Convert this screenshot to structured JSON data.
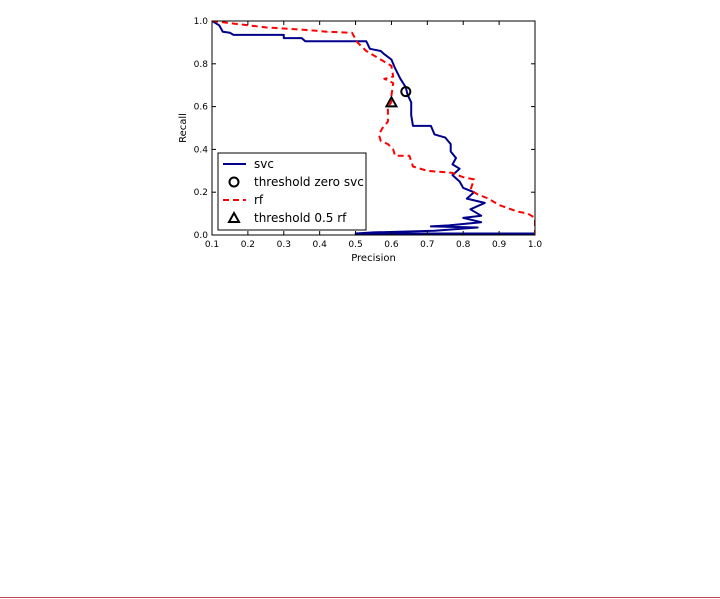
{
  "chart_data": {
    "type": "line",
    "title": "",
    "xlabel": "Precision",
    "ylabel": "Recall",
    "xlim": [
      0.1,
      1.0
    ],
    "ylim": [
      0.0,
      1.0
    ],
    "xticks": [
      "0.1",
      "0.2",
      "0.3",
      "0.4",
      "0.5",
      "0.6",
      "0.7",
      "0.8",
      "0.9",
      "1.0"
    ],
    "yticks": [
      "0.0",
      "0.2",
      "0.4",
      "0.6",
      "0.8",
      "1.0"
    ],
    "grid": false,
    "legend_position": "lower-left",
    "series": [
      {
        "name": "svc",
        "style": "solid",
        "color": "#00008b",
        "points": [
          [
            0.1,
            1.0
          ],
          [
            0.12,
            0.98
          ],
          [
            0.13,
            0.95
          ],
          [
            0.15,
            0.945
          ],
          [
            0.16,
            0.935
          ],
          [
            0.3,
            0.935
          ],
          [
            0.3,
            0.92
          ],
          [
            0.35,
            0.92
          ],
          [
            0.36,
            0.905
          ],
          [
            0.53,
            0.905
          ],
          [
            0.54,
            0.87
          ],
          [
            0.57,
            0.86
          ],
          [
            0.58,
            0.845
          ],
          [
            0.6,
            0.82
          ],
          [
            0.61,
            0.78
          ],
          [
            0.625,
            0.73
          ],
          [
            0.64,
            0.69
          ],
          [
            0.645,
            0.655
          ],
          [
            0.655,
            0.62
          ],
          [
            0.655,
            0.56
          ],
          [
            0.66,
            0.51
          ],
          [
            0.71,
            0.51
          ],
          [
            0.72,
            0.47
          ],
          [
            0.75,
            0.455
          ],
          [
            0.765,
            0.425
          ],
          [
            0.765,
            0.39
          ],
          [
            0.78,
            0.36
          ],
          [
            0.77,
            0.33
          ],
          [
            0.79,
            0.31
          ],
          [
            0.77,
            0.28
          ],
          [
            0.79,
            0.25
          ],
          [
            0.8,
            0.22
          ],
          [
            0.83,
            0.2
          ],
          [
            0.81,
            0.17
          ],
          [
            0.86,
            0.15
          ],
          [
            0.82,
            0.12
          ],
          [
            0.85,
            0.09
          ],
          [
            0.8,
            0.08
          ],
          [
            0.85,
            0.06
          ],
          [
            0.76,
            0.045
          ],
          [
            0.71,
            0.04
          ],
          [
            0.84,
            0.035
          ],
          [
            0.72,
            0.02
          ],
          [
            0.55,
            0.012
          ],
          [
            0.5,
            0.007
          ],
          [
            1.0,
            0.007
          ]
        ]
      },
      {
        "name": "rf",
        "style": "dashed",
        "color": "#ff0000",
        "points": [
          [
            0.1,
            1.0
          ],
          [
            0.25,
            0.97
          ],
          [
            0.35,
            0.96
          ],
          [
            0.42,
            0.95
          ],
          [
            0.49,
            0.945
          ],
          [
            0.505,
            0.9
          ],
          [
            0.53,
            0.86
          ],
          [
            0.56,
            0.83
          ],
          [
            0.6,
            0.79
          ],
          [
            0.605,
            0.74
          ],
          [
            0.58,
            0.73
          ],
          [
            0.605,
            0.71
          ],
          [
            0.6,
            0.65
          ],
          [
            0.6,
            0.62
          ],
          [
            0.59,
            0.6
          ],
          [
            0.59,
            0.53
          ],
          [
            0.575,
            0.5
          ],
          [
            0.565,
            0.47
          ],
          [
            0.57,
            0.44
          ],
          [
            0.59,
            0.425
          ],
          [
            0.605,
            0.4
          ],
          [
            0.61,
            0.37
          ],
          [
            0.65,
            0.37
          ],
          [
            0.66,
            0.32
          ],
          [
            0.7,
            0.3
          ],
          [
            0.77,
            0.29
          ],
          [
            0.8,
            0.27
          ],
          [
            0.83,
            0.26
          ],
          [
            0.82,
            0.21
          ],
          [
            0.84,
            0.19
          ],
          [
            0.87,
            0.17
          ],
          [
            0.9,
            0.14
          ],
          [
            0.95,
            0.11
          ],
          [
            0.98,
            0.1
          ],
          [
            1.0,
            0.08
          ],
          [
            1.0,
            0.0
          ]
        ]
      }
    ],
    "markers": [
      {
        "name": "threshold zero svc",
        "shape": "circle",
        "x": 0.64,
        "y": 0.67
      },
      {
        "name": "threshold 0.5 rf",
        "shape": "triangle",
        "x": 0.6,
        "y": 0.62
      }
    ],
    "legend": [
      "svc",
      "threshold zero svc",
      "rf",
      "threshold 0.5 rf"
    ]
  }
}
